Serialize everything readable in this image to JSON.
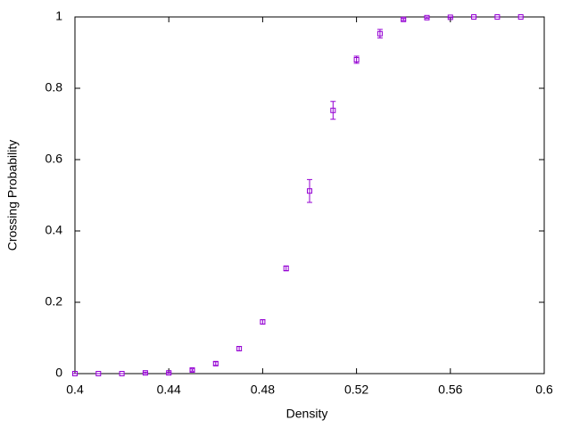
{
  "chart_data": {
    "type": "scatter",
    "xlabel": "Density",
    "ylabel": "Crossing Probability",
    "x": [
      0.4,
      0.41,
      0.42,
      0.43,
      0.44,
      0.45,
      0.46,
      0.47,
      0.48,
      0.49,
      0.5,
      0.51,
      0.52,
      0.53,
      0.54,
      0.55,
      0.56,
      0.57,
      0.58,
      0.59
    ],
    "series": [
      {
        "color": "#9400d3",
        "values": [
          0,
          0,
          0,
          0.002,
          0.002,
          0.01,
          0.028,
          0.07,
          0.145,
          0.295,
          0.512,
          0.738,
          0.88,
          0.953,
          0.993,
          0.998,
          0.999,
          1,
          1,
          1
        ],
        "errors": [
          0,
          0,
          0,
          0.002,
          0.002,
          0.003,
          0.005,
          0.006,
          0.006,
          0.007,
          0.032,
          0.025,
          0.01,
          0.012,
          0.003,
          0.002,
          0.001,
          0,
          0,
          0
        ]
      }
    ],
    "xlim": [
      0.4,
      0.6
    ],
    "xticks": [
      0.4,
      0.44,
      0.48,
      0.52,
      0.56,
      0.6
    ],
    "ylim": [
      0,
      1
    ],
    "yticks": [
      0,
      0.2,
      0.4,
      0.6,
      0.8,
      1
    ],
    "grid": false
  }
}
